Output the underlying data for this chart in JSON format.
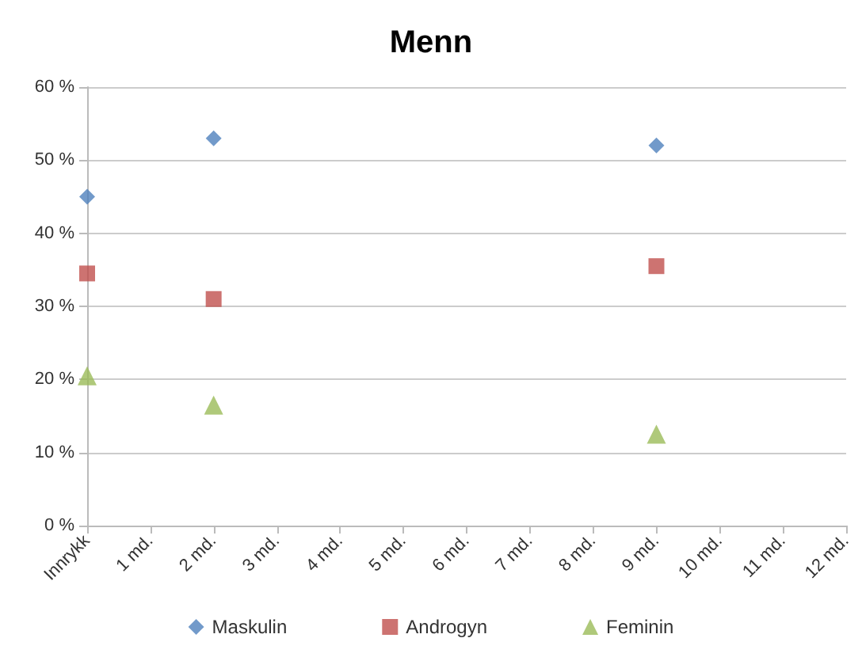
{
  "chart_data": {
    "type": "scatter",
    "title": "Menn",
    "categories": [
      "Innrykk",
      "1 md.",
      "2 md.",
      "3 md.",
      "4 md.",
      "5 md.",
      "6 md.",
      "7 md.",
      "8 md.",
      "9 md.",
      "10 md.",
      "11 md.",
      "12 md."
    ],
    "series": [
      {
        "name": "Maskulin",
        "color": "#4f81bd",
        "marker": "diamond",
        "x": [
          "Innrykk",
          "2 md.",
          "9 md."
        ],
        "values": [
          45,
          53,
          52
        ]
      },
      {
        "name": "Androgyn",
        "color": "#c0504d",
        "marker": "square",
        "x": [
          "Innrykk",
          "2 md.",
          "9 md."
        ],
        "values": [
          34.5,
          31,
          35.5
        ]
      },
      {
        "name": "Feminin",
        "color": "#9bbb59",
        "marker": "triangle",
        "x": [
          "Innrykk",
          "2 md.",
          "9 md."
        ],
        "values": [
          20.5,
          16.5,
          12.5
        ]
      }
    ],
    "ylim": [
      0,
      60
    ],
    "yticks": [
      {
        "value": 0,
        "label": "0 %"
      },
      {
        "value": 10,
        "label": "10 %"
      },
      {
        "value": 20,
        "label": "20 %"
      },
      {
        "value": 30,
        "label": "30 %"
      },
      {
        "value": 40,
        "label": "40 %"
      },
      {
        "value": 50,
        "label": "50 %"
      },
      {
        "value": 60,
        "label": "60 %"
      }
    ],
    "grid": "y",
    "legend": "bottom"
  }
}
